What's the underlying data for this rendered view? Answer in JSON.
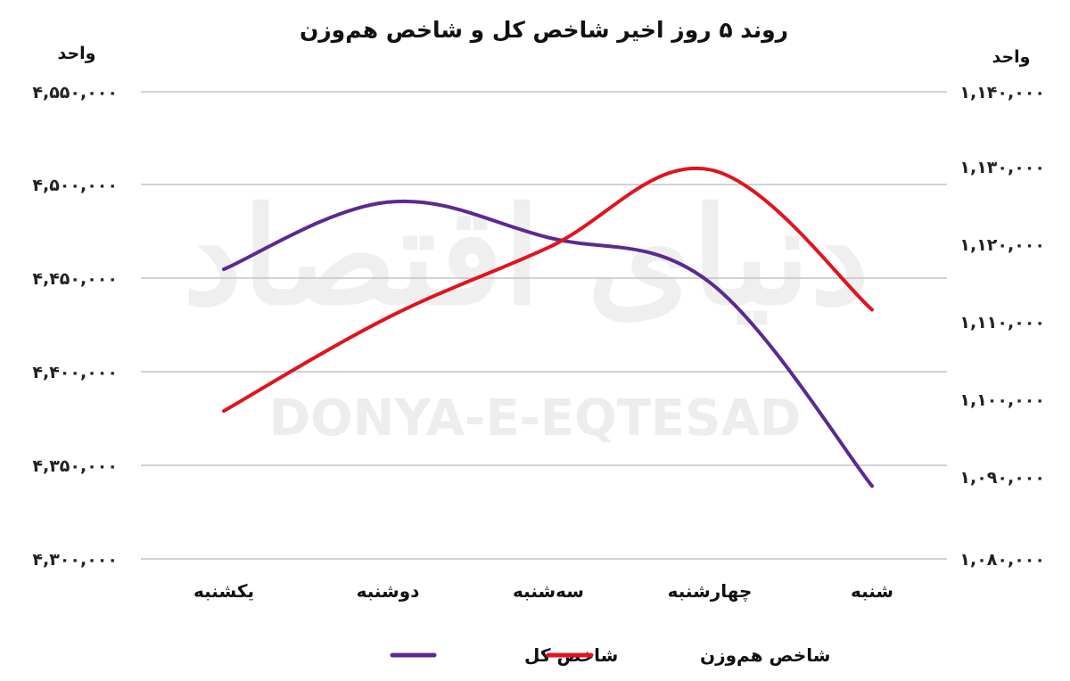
{
  "chart_data": {
    "type": "line",
    "title": "روند ۵ روز اخیر شاخص کل و شاخص هم‌وزن",
    "categories": [
      "یکشنبه",
      "دوشنبه",
      "سه‌شنبه",
      "چهارشنبه",
      "شنبه"
    ],
    "y_left": {
      "label": "واحد",
      "range": [
        4300000,
        4550000
      ],
      "ticks": [
        "۴,۵۵۰,۰۰۰",
        "۴,۵۰۰,۰۰۰",
        "۴,۴۵۰,۰۰۰",
        "۴,۴۰۰,۰۰۰",
        "۴,۳۵۰,۰۰۰",
        "۴,۳۰۰,۰۰۰"
      ]
    },
    "y_right": {
      "label": "واحد",
      "range": [
        1080000,
        1140000
      ],
      "ticks": [
        "۱,۱۴۰,۰۰۰",
        "۱,۱۳۰,۰۰۰",
        "۱,۱۲۰,۰۰۰",
        "۱,۱۱۰,۰۰۰",
        "۱,۱۰۰,۰۰۰",
        "۱,۰۹۰,۰۰۰",
        "۱,۰۸۰,۰۰۰"
      ]
    },
    "series": [
      {
        "name": "شاخص کل",
        "axis": "left",
        "color": "#5b2a91",
        "values": [
          4455000,
          4491000,
          4472000,
          4448000,
          4339000
        ]
      },
      {
        "name": "شاخص هم‌وزن",
        "axis": "right",
        "color": "#e0141e",
        "values": [
          1099000,
          1111000,
          1120000,
          1130000,
          1112000
        ]
      }
    ],
    "grid": true,
    "legend_position": "bottom"
  },
  "watermark": {
    "latin": "DONYA-E-EQTESAD",
    "persian": "دنیای اقتصاد"
  }
}
